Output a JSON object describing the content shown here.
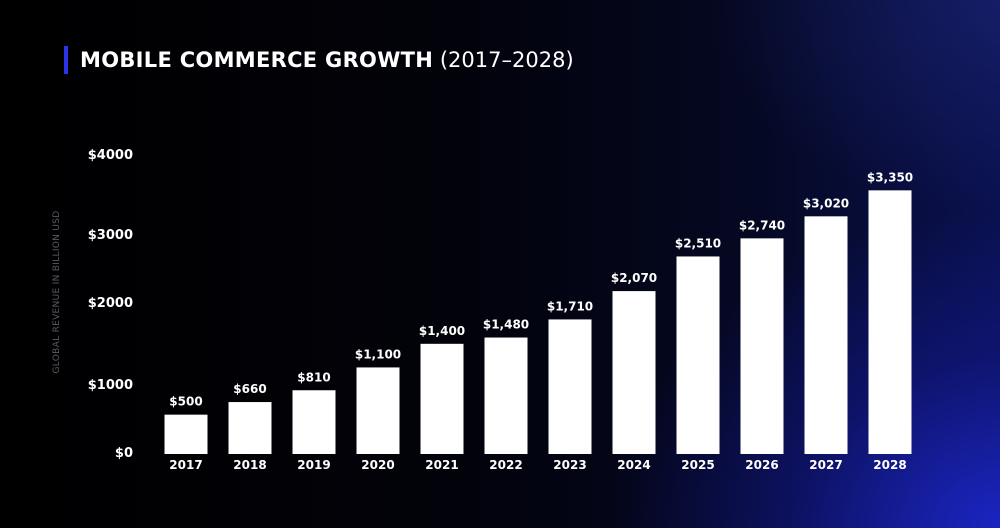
{
  "header": {
    "title_main": "MOBILE COMMERCE GROWTH",
    "title_sub": "(2017–2028)",
    "accent_color": "#2b34e8"
  },
  "chart_data": {
    "type": "bar",
    "title": "MOBILE COMMERCE GROWTH (2017–2028)",
    "xlabel": "",
    "ylabel": "GLOBAL REVENUE IN BILLION USD",
    "categories": [
      "2017",
      "2018",
      "2019",
      "2020",
      "2021",
      "2022",
      "2023",
      "2024",
      "2025",
      "2026",
      "2027",
      "2028"
    ],
    "values": [
      500,
      660,
      810,
      1100,
      1400,
      1480,
      1710,
      2070,
      2510,
      2740,
      3020,
      3350
    ],
    "value_labels": [
      "$500",
      "$660",
      "$810",
      "$1,100",
      "$1,400",
      "$1,480",
      "$1,710",
      "$2,070",
      "$2,510",
      "$2,740",
      "$3,020",
      "$3,350"
    ],
    "y_ticks": [
      0,
      1000,
      2000,
      3000,
      4000
    ],
    "y_tick_labels": [
      "$0",
      "$1000",
      "$2000",
      "$3000",
      "$4000"
    ],
    "ylim": [
      0,
      3700
    ],
    "grid": false,
    "legend": "none",
    "bar_color": "#ffffff"
  }
}
